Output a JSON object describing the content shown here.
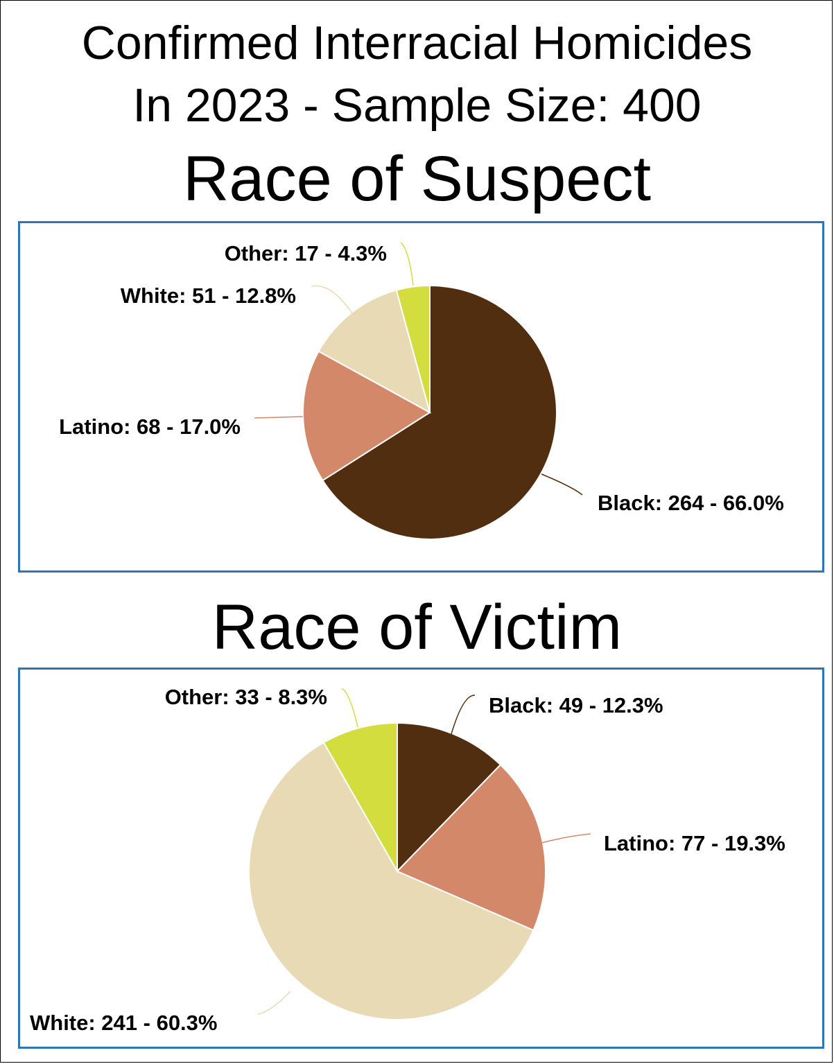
{
  "title": {
    "line1": "Confirmed Interracial Homicides",
    "line2": "In 2023 - Sample Size: 400"
  },
  "colors": {
    "Black": "#522E10",
    "Latino": "#D38869",
    "White": "#E8DAB4",
    "Other": "#D4DD3E",
    "border": "#2E75B6"
  },
  "chart_data": [
    {
      "type": "pie",
      "title": "Race of Suspect",
      "categories": [
        "Black",
        "Latino",
        "White",
        "Other"
      ],
      "values": [
        264,
        68,
        51,
        17
      ],
      "labels": [
        "Black: 264 - 66.0%",
        "Latino: 68 - 17.0%",
        "White: 51 - 12.8%",
        "Other: 17 - 4.3%"
      ],
      "percentages": [
        66.0,
        17.0,
        12.8,
        4.3
      ]
    },
    {
      "type": "pie",
      "title": "Race of Victim",
      "categories": [
        "Black",
        "Latino",
        "White",
        "Other"
      ],
      "values": [
        49,
        77,
        241,
        33
      ],
      "labels": [
        "Black: 49 - 12.3%",
        "Latino: 77 - 19.3%",
        "White: 241 - 60.3%",
        "Other: 33 - 8.3%"
      ],
      "percentages": [
        12.3,
        19.3,
        60.3,
        8.3
      ]
    }
  ]
}
